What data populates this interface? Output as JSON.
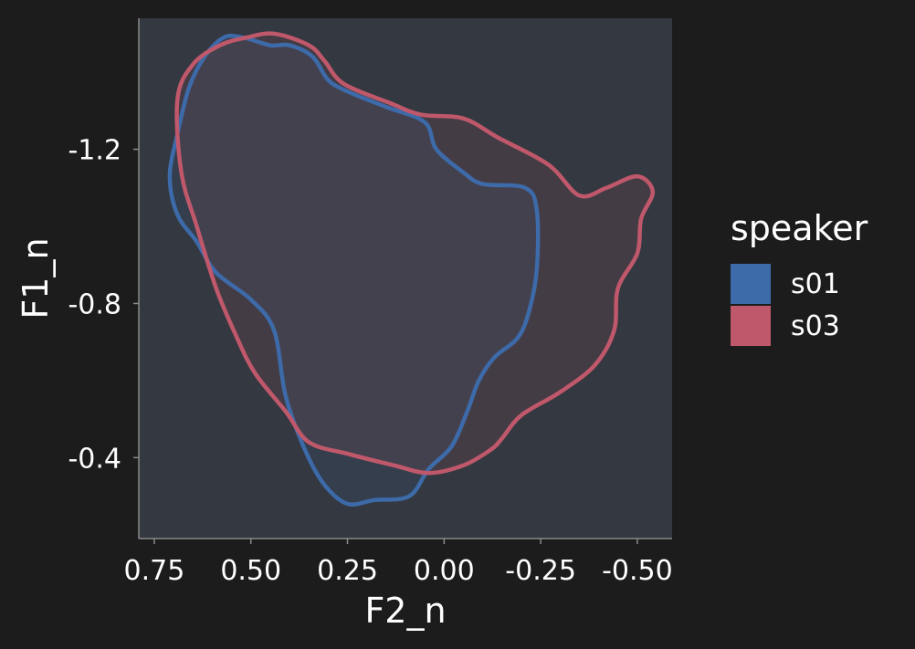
{
  "chart_data": {
    "type": "area",
    "xlabel": "F2_n",
    "ylabel": "F1_n",
    "xlim": [
      0.79,
      -0.59
    ],
    "ylim": [
      -1.54,
      -0.19
    ],
    "y_reversed": true,
    "x_reversed": true,
    "x_ticks": [
      0.75,
      0.5,
      0.25,
      0.0,
      -0.25,
      -0.5
    ],
    "x_tick_labels": [
      "0.75",
      "0.50",
      "0.25",
      "0.00",
      "-0.25",
      "-0.50"
    ],
    "y_ticks": [
      -1.2,
      -0.8,
      -0.4
    ],
    "y_tick_labels": [
      "-1.2",
      "-0.8",
      "-0.4"
    ],
    "grid": false,
    "legend": {
      "title": "speaker",
      "position": "right"
    },
    "series": [
      {
        "name": "s01",
        "color": "#3d6aa8",
        "outline": [
          [
            0.52,
            -1.49
          ],
          [
            0.45,
            -1.47
          ],
          [
            0.4,
            -1.47
          ],
          [
            0.34,
            -1.44
          ],
          [
            0.3,
            -1.38
          ],
          [
            0.25,
            -1.35
          ],
          [
            0.15,
            -1.31
          ],
          [
            0.05,
            -1.27
          ],
          [
            0.02,
            -1.2
          ],
          [
            -0.05,
            -1.14
          ],
          [
            -0.1,
            -1.11
          ],
          [
            -0.21,
            -1.1
          ],
          [
            -0.24,
            -1.04
          ],
          [
            -0.24,
            -0.89
          ],
          [
            -0.22,
            -0.78
          ],
          [
            -0.19,
            -0.71
          ],
          [
            -0.13,
            -0.66
          ],
          [
            -0.09,
            -0.6
          ],
          [
            -0.06,
            -0.52
          ],
          [
            -0.02,
            -0.43
          ],
          [
            0.04,
            -0.37
          ],
          [
            0.09,
            -0.3
          ],
          [
            0.18,
            -0.29
          ],
          [
            0.25,
            -0.28
          ],
          [
            0.31,
            -0.33
          ],
          [
            0.36,
            -0.42
          ],
          [
            0.41,
            -0.56
          ],
          [
            0.44,
            -0.73
          ],
          [
            0.5,
            -0.81
          ],
          [
            0.59,
            -0.88
          ],
          [
            0.64,
            -0.96
          ],
          [
            0.69,
            -1.03
          ],
          [
            0.71,
            -1.13
          ],
          [
            0.69,
            -1.24
          ],
          [
            0.66,
            -1.36
          ],
          [
            0.62,
            -1.44
          ],
          [
            0.57,
            -1.49
          ]
        ]
      },
      {
        "name": "s03",
        "color": "#c0586b",
        "outline": [
          [
            0.44,
            -1.5
          ],
          [
            0.35,
            -1.47
          ],
          [
            0.31,
            -1.43
          ],
          [
            0.26,
            -1.37
          ],
          [
            0.14,
            -1.32
          ],
          [
            0.06,
            -1.29
          ],
          [
            -0.05,
            -1.28
          ],
          [
            -0.14,
            -1.23
          ],
          [
            -0.27,
            -1.16
          ],
          [
            -0.35,
            -1.08
          ],
          [
            -0.42,
            -1.1
          ],
          [
            -0.5,
            -1.13
          ],
          [
            -0.54,
            -1.09
          ],
          [
            -0.51,
            -1.02
          ],
          [
            -0.5,
            -0.93
          ],
          [
            -0.45,
            -0.84
          ],
          [
            -0.44,
            -0.73
          ],
          [
            -0.39,
            -0.64
          ],
          [
            -0.3,
            -0.57
          ],
          [
            -0.2,
            -0.51
          ],
          [
            -0.15,
            -0.45
          ],
          [
            -0.12,
            -0.42
          ],
          [
            -0.05,
            -0.38
          ],
          [
            0.04,
            -0.36
          ],
          [
            0.13,
            -0.38
          ],
          [
            0.25,
            -0.41
          ],
          [
            0.35,
            -0.44
          ],
          [
            0.41,
            -0.52
          ],
          [
            0.49,
            -0.62
          ],
          [
            0.54,
            -0.72
          ],
          [
            0.59,
            -0.84
          ],
          [
            0.64,
            -1.0
          ],
          [
            0.68,
            -1.14
          ],
          [
            0.69,
            -1.33
          ],
          [
            0.65,
            -1.42
          ],
          [
            0.58,
            -1.47
          ],
          [
            0.51,
            -1.49
          ]
        ]
      }
    ]
  }
}
